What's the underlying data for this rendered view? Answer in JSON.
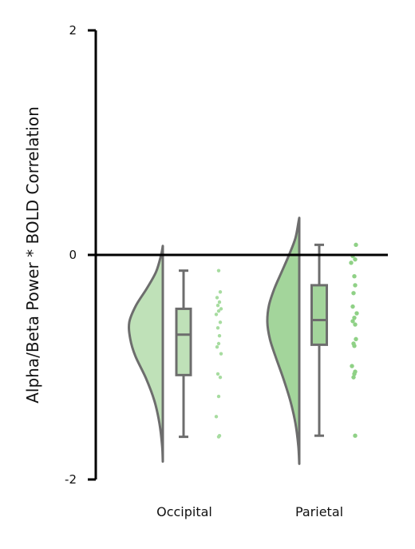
{
  "chart_data": {
    "type": "raincloud",
    "ylabel": "Alpha/Beta Power * BOLD Correlation",
    "ylim": [
      -2,
      2
    ],
    "yticks": [
      -2,
      0,
      2
    ],
    "ytick_labels": [
      "-2",
      "0",
      "2"
    ],
    "reference_line_y": 0,
    "categories": [
      "Occipital",
      "Parietal"
    ],
    "colors": {
      "Occipital": {
        "fill": "#bfe1b8",
        "points": "#a7dca0"
      },
      "Parietal": {
        "fill": "#a3d59b",
        "points": "#8fd186"
      },
      "edge": "#6d6d6d",
      "axis": "#000000"
    },
    "groups": [
      {
        "name": "Occipital",
        "box": {
          "whisker_low": -1.62,
          "q1": -1.07,
          "median": -0.71,
          "q3": -0.48,
          "whisker_high": -0.14
        },
        "density": {
          "y": [
            -1.84,
            -1.7,
            -1.5,
            -1.3,
            -1.1,
            -0.9,
            -0.75,
            -0.6,
            -0.45,
            -0.3,
            -0.15,
            0.0,
            0.08
          ],
          "w": [
            0.0,
            0.02,
            0.1,
            0.25,
            0.5,
            0.82,
            0.97,
            1.0,
            0.8,
            0.48,
            0.2,
            0.05,
            0.0
          ]
        },
        "points": [
          -0.14,
          -0.33,
          -0.38,
          -0.42,
          -0.45,
          -0.48,
          -0.5,
          -0.53,
          -0.6,
          -0.65,
          -0.72,
          -0.79,
          -0.82,
          -0.88,
          -1.06,
          -1.09,
          -1.26,
          -1.44,
          -1.61,
          -1.62
        ]
      },
      {
        "name": "Parietal",
        "box": {
          "whisker_low": -1.61,
          "q1": -0.8,
          "median": -0.58,
          "q3": -0.27,
          "whisker_high": 0.09
        },
        "density": {
          "y": [
            -1.86,
            -1.7,
            -1.5,
            -1.3,
            -1.1,
            -0.9,
            -0.75,
            -0.6,
            -0.45,
            -0.3,
            -0.15,
            0.0,
            0.15,
            0.3,
            0.33
          ],
          "w": [
            0.0,
            0.03,
            0.12,
            0.28,
            0.5,
            0.75,
            0.92,
            1.0,
            0.95,
            0.78,
            0.55,
            0.32,
            0.12,
            0.02,
            0.0
          ]
        },
        "points": [
          0.09,
          -0.01,
          -0.04,
          -0.07,
          -0.19,
          -0.27,
          -0.34,
          -0.46,
          -0.52,
          -0.56,
          -0.59,
          -0.62,
          -0.75,
          -0.79,
          -0.81,
          -0.99,
          -1.04,
          -1.06,
          -1.09,
          -1.61
        ]
      }
    ]
  }
}
